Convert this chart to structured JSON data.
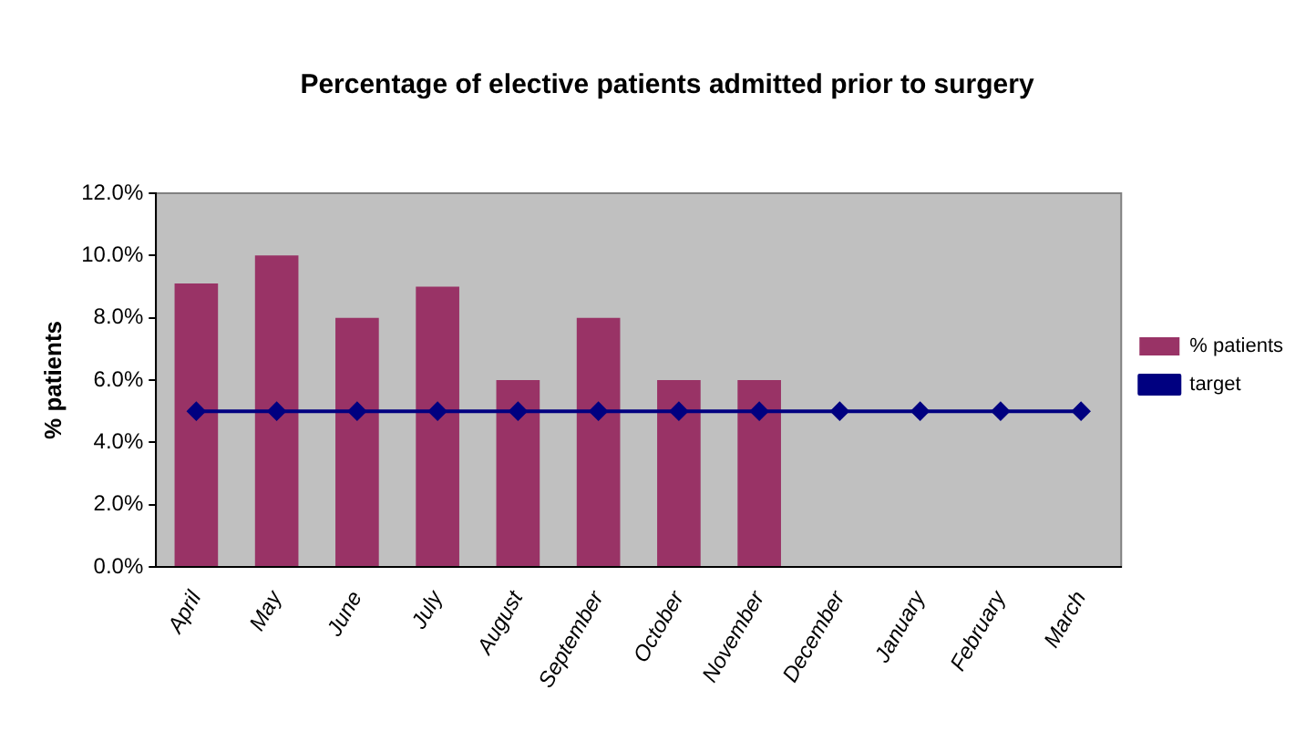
{
  "chart_data": {
    "type": "bar",
    "title": "Percentage of elective patients admitted prior to surgery",
    "ylabel": "% patients",
    "categories": [
      "April",
      "May",
      "June",
      "July",
      "August",
      "September",
      "October",
      "November",
      "December",
      "January",
      "February",
      "March"
    ],
    "series": [
      {
        "name": "% patients",
        "color": "#993366",
        "values": [
          9.1,
          10.0,
          8.0,
          9.0,
          6.0,
          8.0,
          6.0,
          6.0,
          null,
          null,
          null,
          null
        ]
      },
      {
        "name": "target",
        "type": "line",
        "color": "#000080",
        "marker": "diamond",
        "values": [
          5,
          5,
          5,
          5,
          5,
          5,
          5,
          5,
          5,
          5,
          5,
          5
        ]
      }
    ],
    "ylim": [
      0,
      12
    ],
    "yticks": [
      {
        "value": 0,
        "label": "0.0%"
      },
      {
        "value": 2,
        "label": "2.0%"
      },
      {
        "value": 4,
        "label": "4.0%"
      },
      {
        "value": 6,
        "label": "6.0%"
      },
      {
        "value": 8,
        "label": "8.0%"
      },
      {
        "value": 10,
        "label": "10.0%"
      },
      {
        "value": 12,
        "label": "12.0%"
      }
    ],
    "grid": false,
    "legend": "right"
  }
}
